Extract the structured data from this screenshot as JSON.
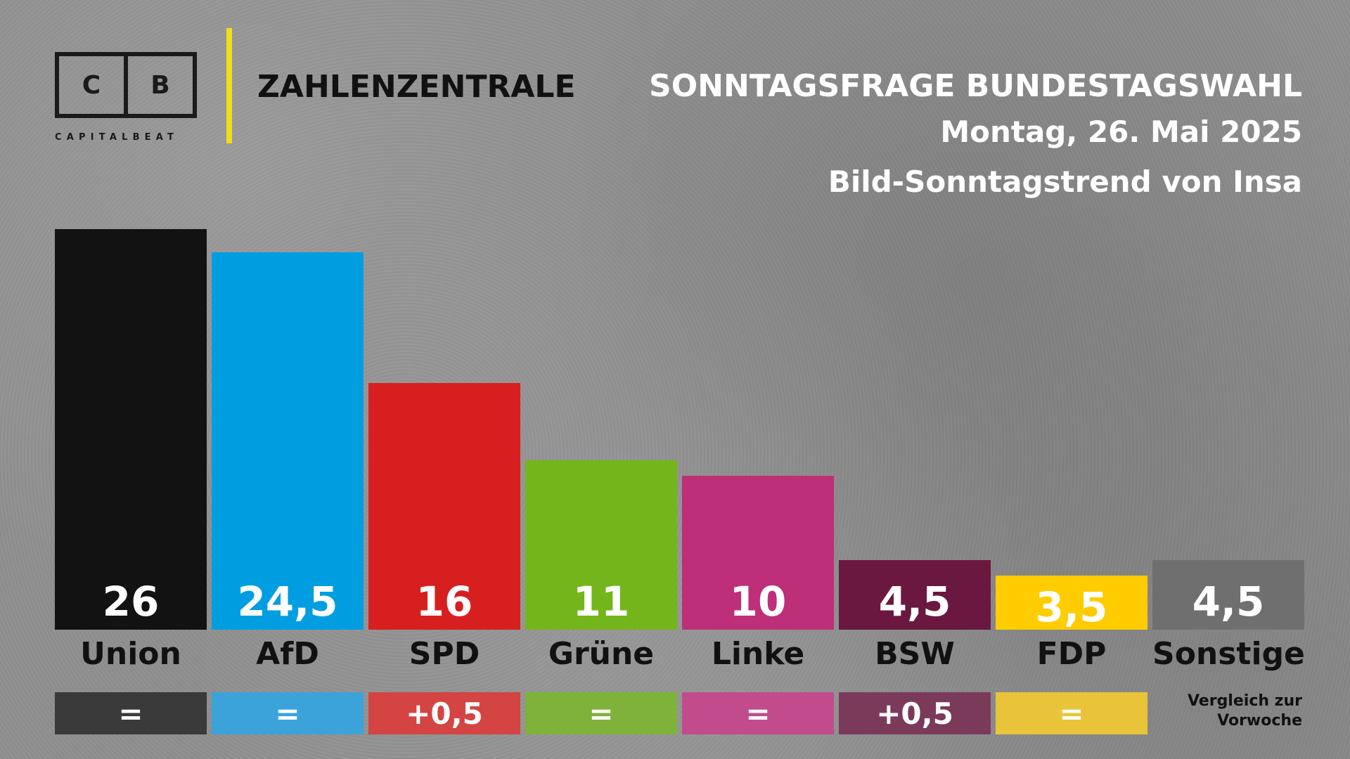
{
  "header": {
    "logo_left": "C",
    "logo_right": "B",
    "logo_sub": "CAPITALBEAT",
    "brand": "ZAHLENZENTRALE",
    "title": "SONNTAGSFRAGE BUNDESTAGSWAHL",
    "date": "Montag, 26. Mai 2025",
    "source": "Bild-Sonntagstrend von Insa"
  },
  "colors": {
    "accent_divider": "#f2dd1a",
    "background": "#8f8f8f"
  },
  "chart_data": {
    "type": "bar",
    "title": "SONNTAGSFRAGE BUNDESTAGSWAHL",
    "xlabel": "",
    "ylabel": "",
    "ylim": [
      0,
      26
    ],
    "grid": false,
    "categories": [
      "Union",
      "AfD",
      "SPD",
      "Grüne",
      "Linke",
      "BSW",
      "FDP",
      "Sonstige"
    ],
    "values": [
      26,
      24.5,
      16,
      11,
      10,
      4.5,
      3.5,
      4.5
    ],
    "value_labels": [
      "26",
      "24,5",
      "16",
      "11",
      "10",
      "4,5",
      "3,5",
      "4,5"
    ],
    "colors": [
      "#121212",
      "#009ee0",
      "#d81f1f",
      "#74b51b",
      "#bd2f78",
      "#6a1840",
      "#ffcc00",
      "#6f6f6f"
    ],
    "changes": [
      "=",
      "=",
      "+0,5",
      "=",
      "=",
      "+0,5",
      "="
    ],
    "change_colors": [
      "#3a3a3a",
      "#3ba3da",
      "#d34443",
      "#7fb23a",
      "#c24c8b",
      "#7c3a5b",
      "#e9c43b"
    ],
    "change_note": [
      "Vergleich zur",
      "Vorwoche"
    ]
  }
}
